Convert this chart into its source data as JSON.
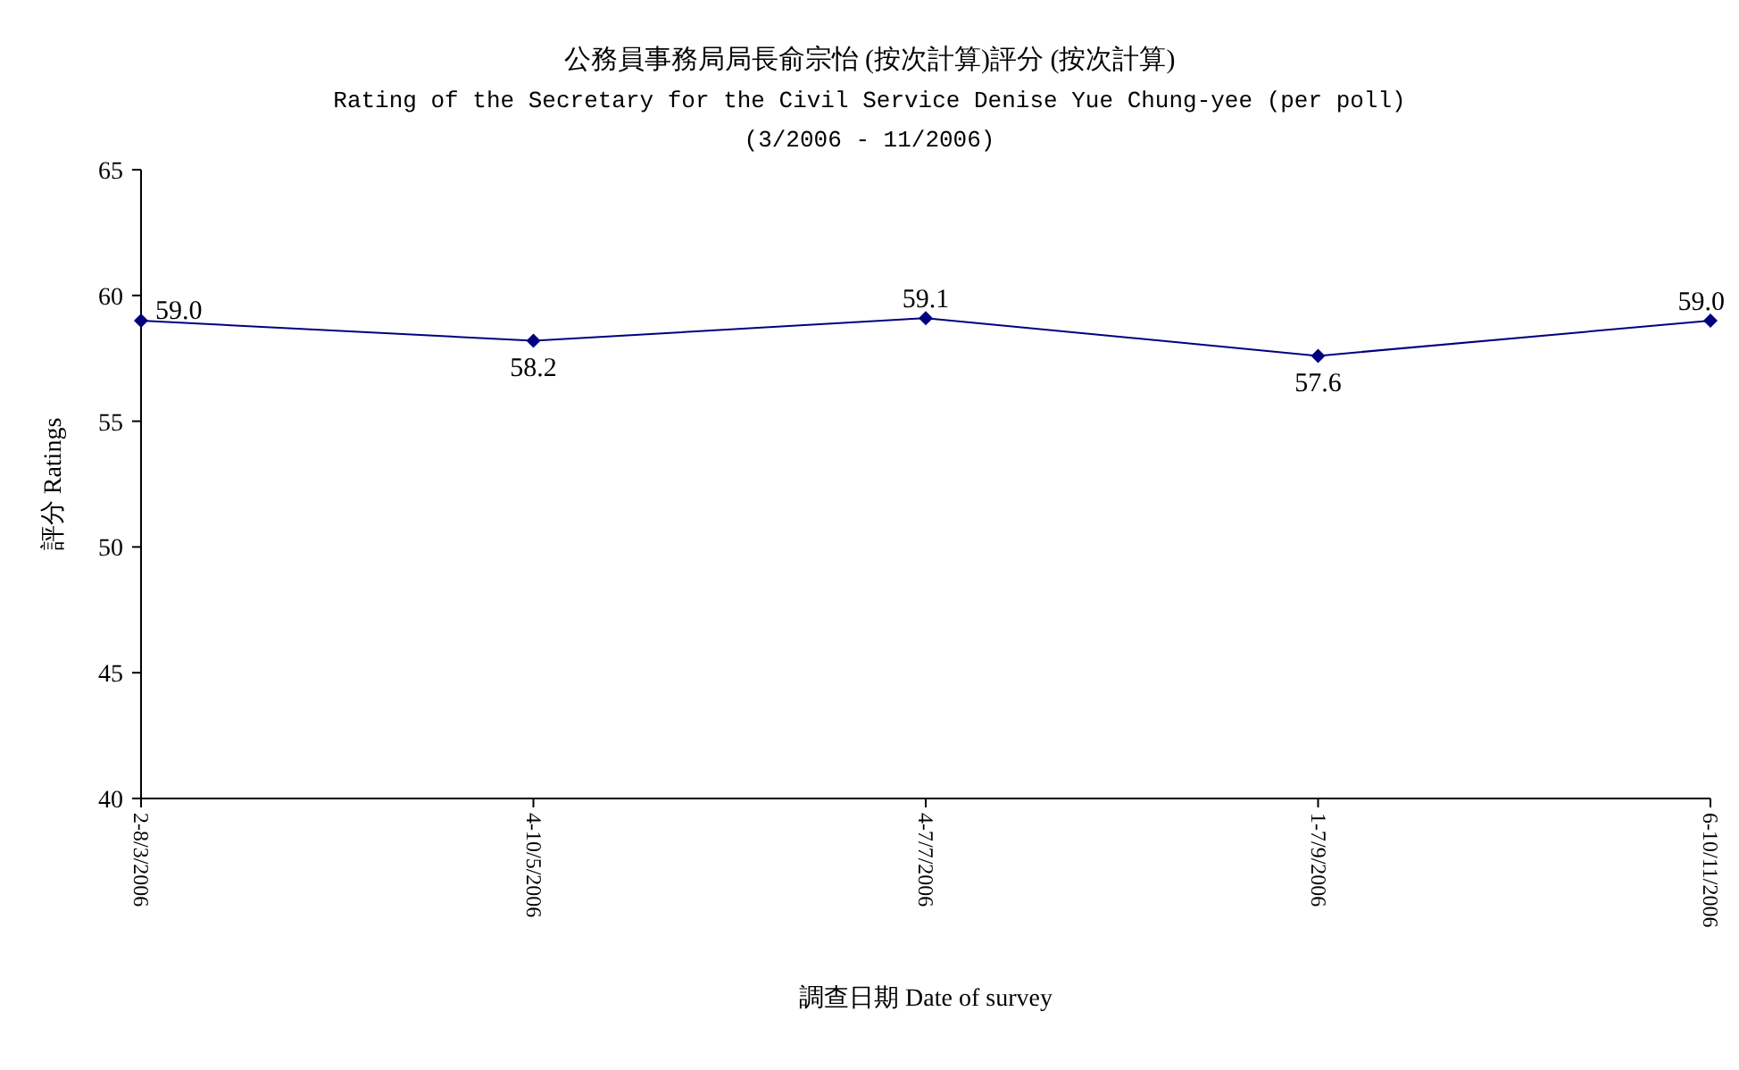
{
  "chart_data": {
    "type": "line",
    "title": "公務員事務局局長俞宗怡 (按次計算)評分 (按次計算)",
    "subtitle": "Rating of the Secretary for the Civil Service Denise Yue Chung-yee  (per poll)",
    "annotations": [
      "(3/2006 - 11/2006)"
    ],
    "xlabel": "調查日期 Date of survey",
    "ylabel": "評分 Ratings",
    "categories": [
      "2-8/3/2006",
      "4-10/5/2006",
      "4-7/7/2006",
      "1-7/9/2006",
      "6-10/11/2006"
    ],
    "series": [
      {
        "color": "#000080",
        "values": [
          59.0,
          58.2,
          59.1,
          57.6,
          59.0
        ],
        "value_labels": [
          "59.0",
          "58.2",
          "59.1",
          "57.6",
          "59.0"
        ]
      }
    ],
    "ylim": [
      40,
      65
    ],
    "yticks": [
      40,
      45,
      50,
      55,
      60,
      65
    ],
    "marker": "diamond",
    "line_style": "solid"
  }
}
